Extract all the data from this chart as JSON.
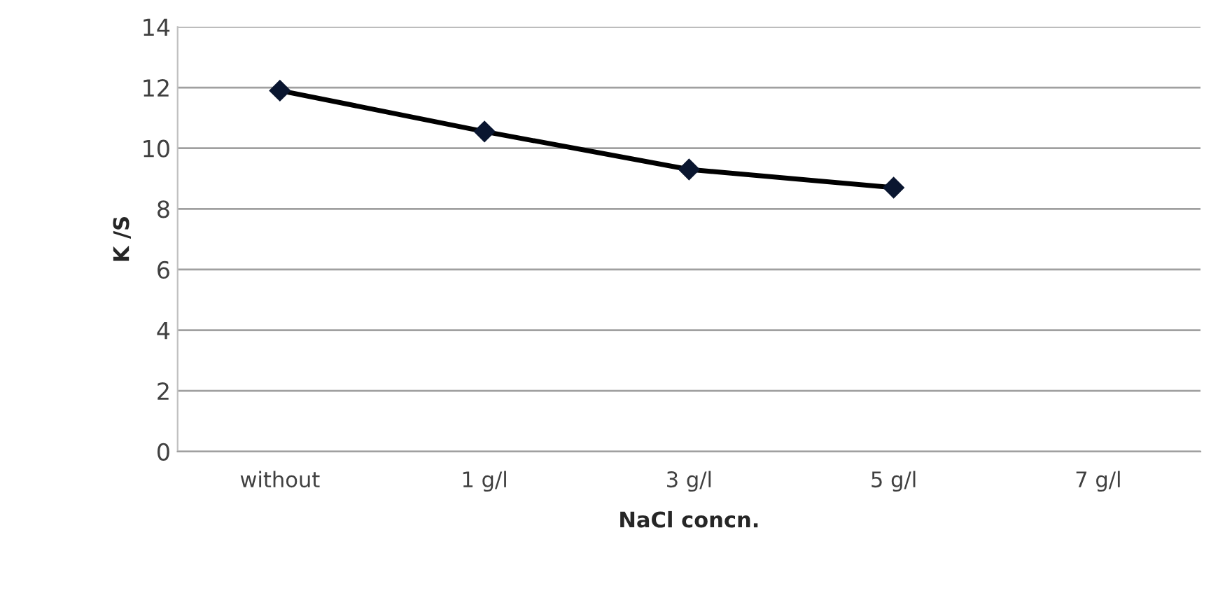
{
  "chart_data": {
    "type": "line",
    "xlabel": "NaCl concn.",
    "ylabel": "K /S",
    "categories": [
      "without",
      "1 g/l",
      "3 g/l",
      "5 g/l",
      "7 g/l"
    ],
    "series": [
      {
        "color": "#0a1630",
        "values": [
          11.9,
          10.55,
          9.3,
          8.7,
          null
        ]
      }
    ],
    "ylim": [
      0,
      14
    ],
    "yticks": [
      0,
      2,
      4,
      6,
      8,
      10,
      12,
      14
    ],
    "grid": "y",
    "marker": "diamond",
    "line_style": "solid"
  }
}
